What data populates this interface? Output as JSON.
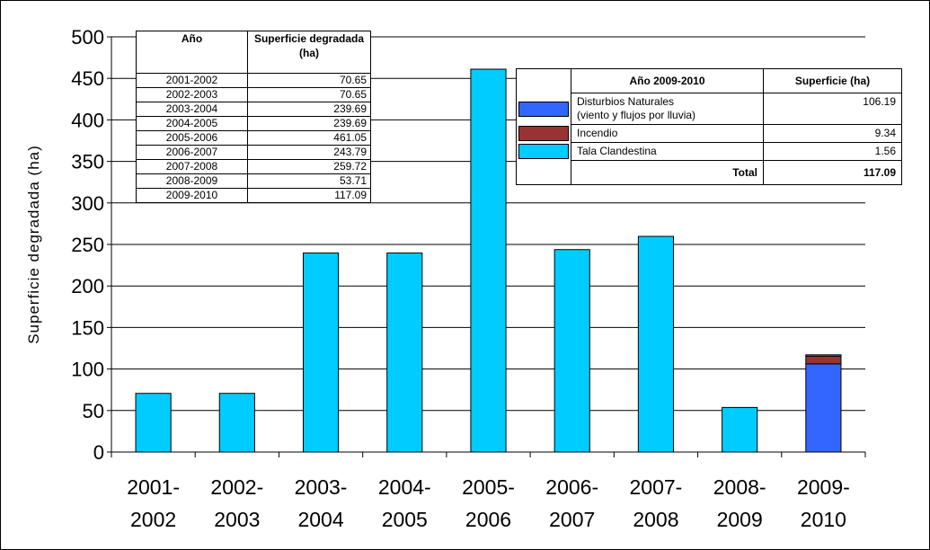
{
  "chart_data": {
    "type": "bar",
    "ylabel": "Superficie degradada (ha)",
    "ylim": [
      0,
      500
    ],
    "yticks": [
      0,
      50,
      100,
      150,
      200,
      250,
      300,
      350,
      400,
      450,
      500
    ],
    "grid": true,
    "categories": [
      "2001-2002",
      "2002-2003",
      "2003-2004",
      "2004-2005",
      "2005-2006",
      "2006-2007",
      "2007-2008",
      "2008-2009",
      "2009-2010"
    ],
    "category_lines": [
      [
        "2001-",
        "2002"
      ],
      [
        "2002-",
        "2003"
      ],
      [
        "2003-",
        "2004"
      ],
      [
        "2004-",
        "2005"
      ],
      [
        "2005-",
        "2006"
      ],
      [
        "2006-",
        "2007"
      ],
      [
        "2007-",
        "2008"
      ],
      [
        "2008-",
        "2009"
      ],
      [
        "2009-",
        "2010"
      ]
    ],
    "series": [
      {
        "name": "Disturbios Naturales (viento y flujos por lluvia)",
        "color": "#3366ff",
        "values": [
          0,
          0,
          0,
          0,
          0,
          0,
          0,
          0,
          106.19
        ]
      },
      {
        "name": "Incendio",
        "color": "#993333",
        "values": [
          0,
          0,
          0,
          0,
          0,
          0,
          0,
          0,
          9.34
        ]
      },
      {
        "name": "Tala Clandestina",
        "color": "#00ccff",
        "values": [
          70.65,
          70.65,
          239.69,
          239.69,
          461.05,
          243.79,
          259.72,
          53.71,
          1.56
        ]
      }
    ]
  },
  "year_table": {
    "headers": [
      "Año",
      "Superficie degradada (ha)"
    ],
    "rows": [
      [
        "2001-2002",
        "70.65"
      ],
      [
        "2002-2003",
        "70.65"
      ],
      [
        "2003-2004",
        "239.69"
      ],
      [
        "2004-2005",
        "239.69"
      ],
      [
        "2005-2006",
        "461.05"
      ],
      [
        "2006-2007",
        "243.79"
      ],
      [
        "2007-2008",
        "259.72"
      ],
      [
        "2008-2009",
        "53.71"
      ],
      [
        "2009-2010",
        "117.09"
      ]
    ]
  },
  "legend_table": {
    "headers": [
      "Año 2009-2010",
      "Superficie (ha)"
    ],
    "rows": [
      {
        "label_line1": "Disturbios Naturales",
        "label_line2": "(viento y flujos por lluvia)",
        "value": "106.19",
        "color": "#3366ff"
      },
      {
        "label_line1": "Incendio",
        "label_line2": "",
        "value": "9.34",
        "color": "#993333"
      },
      {
        "label_line1": "Tala Clandestina",
        "label_line2": "",
        "value": "1.56",
        "color": "#00ccff"
      }
    ],
    "total_label": "Total",
    "total_value": "117.09"
  }
}
